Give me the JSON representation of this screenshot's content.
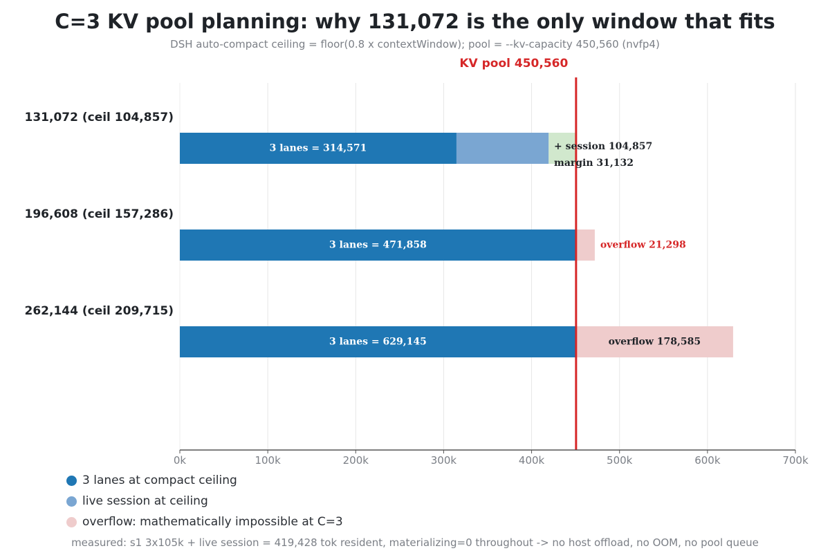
{
  "title": "C=3 KV pool planning: why 131,072 is the only window that fits",
  "subtitle": "DSH auto-compact ceiling = floor(0.8 x contextWindow); pool = --kv-capacity 450,560 (nvfp4)",
  "footer": "measured: s1 3x105k + live session = 419,428 tok resident, materializing=0 throughout -> no host offload, no OOM, no pool queue",
  "legend": [
    {
      "label": "3 lanes at compact ceiling",
      "color": "#1f77b4"
    },
    {
      "label": "live session at ceiling",
      "color": "#7aa6d2"
    },
    {
      "label": "overflow: mathematically impossible at C=3",
      "color": "#efcccc"
    }
  ],
  "chart_data": {
    "type": "bar",
    "orientation": "horizontal",
    "stacked": true,
    "xlim": [
      0,
      700000
    ],
    "x_ticks": [
      0,
      100000,
      200000,
      300000,
      400000,
      500000,
      600000,
      700000
    ],
    "x_tick_labels": [
      "0k",
      "100k",
      "200k",
      "300k",
      "400k",
      "500k",
      "600k",
      "700k"
    ],
    "grid": true,
    "legend_position": "bottom-left",
    "pool": {
      "value": 450560,
      "label": "KV pool 450,560",
      "color": "#d62728"
    },
    "categories": [
      {
        "label": "131,072  (ceil 104,857)",
        "segments": [
          {
            "start": 0,
            "end": 314571,
            "color": "#1f77b4",
            "label": "3 lanes = 314,571",
            "label_color": "#ffffff",
            "label_anchor": "center"
          },
          {
            "start": 314571,
            "end": 419428,
            "color": "#7aa6d2",
            "label": "+ session 104,857",
            "label_color": "#1f2328",
            "label_anchor": "right-top"
          },
          {
            "start": 419428,
            "end": 450560,
            "color": "#d1e8cd",
            "label": "margin 31,132",
            "label_color": "#1f2328",
            "label_anchor": "right-bottom"
          }
        ]
      },
      {
        "label": "196,608  (ceil 157,286)",
        "segments": [
          {
            "start": 0,
            "end": 450560,
            "color": "#1f77b4",
            "label": "3 lanes = 471,858",
            "label_color": "#ffffff",
            "label_anchor": "center"
          },
          {
            "start": 450560,
            "end": 471858,
            "color": "#efcccc",
            "label": "overflow 21,298",
            "label_color": "#d62728",
            "label_anchor": "right"
          }
        ]
      },
      {
        "label": "262,144  (ceil 209,715)",
        "segments": [
          {
            "start": 0,
            "end": 450560,
            "color": "#1f77b4",
            "label": "3 lanes = 629,145",
            "label_color": "#ffffff",
            "label_anchor": "center"
          },
          {
            "start": 450560,
            "end": 629145,
            "color": "#efcccc",
            "label": "overflow 178,585",
            "label_color": "#1f2328",
            "label_anchor": "center"
          }
        ]
      }
    ]
  }
}
